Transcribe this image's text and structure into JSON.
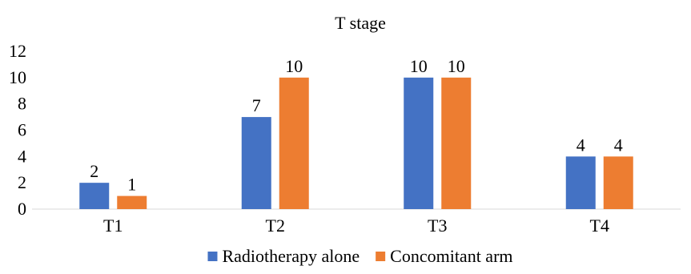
{
  "chart_data": {
    "type": "bar",
    "title": "T stage",
    "xlabel": "",
    "ylabel": "",
    "categories": [
      "T1",
      "T2",
      "T3",
      "T4"
    ],
    "series": [
      {
        "name": "Radiotherapy alone",
        "values": [
          2,
          7,
          10,
          4
        ],
        "color": "#4472C4"
      },
      {
        "name": "Concomitant arm",
        "values": [
          1,
          10,
          10,
          4
        ],
        "color": "#ED7D31"
      }
    ],
    "ylim": [
      0,
      12
    ],
    "yticks": [
      0,
      2,
      4,
      6,
      8,
      10,
      12
    ],
    "grid": false,
    "legend": "bottom",
    "data_labels": true
  }
}
